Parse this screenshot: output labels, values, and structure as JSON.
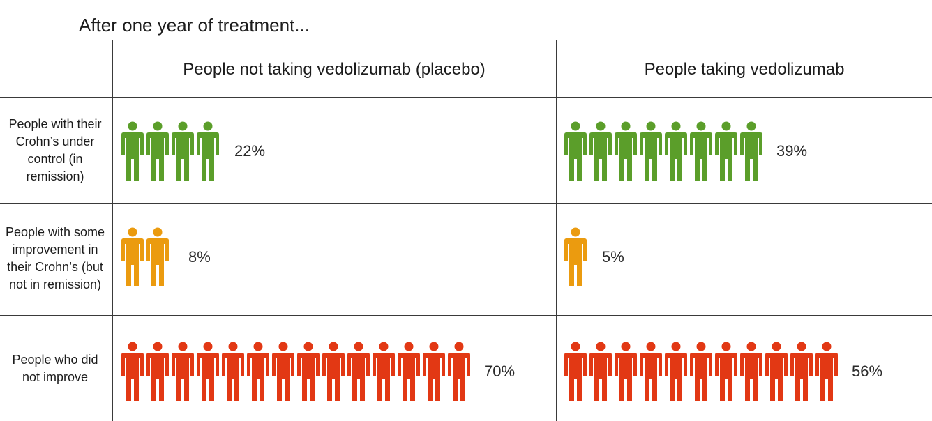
{
  "title": "After one year of treatment...",
  "columns": [
    "People not taking vedolizumab (placebo)",
    "People taking vedolizumab"
  ],
  "rows": [
    "People with their Crohn’s under control (in remission)",
    "People with some improvement in their Crohn’s (but not in remission)",
    "People who did not improve"
  ],
  "chart_data": {
    "type": "pictogram",
    "title": "After one year of treatment...",
    "series": [
      {
        "name": "People not taking vedolizumab (placebo)",
        "cells": [
          {
            "row": "remission",
            "label": "22%",
            "value": 22,
            "icons": 4,
            "color": "#5b9e2a"
          },
          {
            "row": "improvement",
            "label": "8%",
            "value": 8,
            "icons": 2,
            "color": "#eb9b0f"
          },
          {
            "row": "no-improvement",
            "label": "70%",
            "value": 70,
            "icons": 14,
            "color": "#e23814"
          }
        ]
      },
      {
        "name": "People taking vedolizumab",
        "cells": [
          {
            "row": "remission",
            "label": "39%",
            "value": 39,
            "icons": 8,
            "color": "#5b9e2a"
          },
          {
            "row": "improvement",
            "label": "5%",
            "value": 5,
            "icons": 1,
            "color": "#eb9b0f"
          },
          {
            "row": "no-improvement",
            "label": "56%",
            "value": 56,
            "icons": 11,
            "color": "#e23814"
          }
        ]
      }
    ]
  }
}
